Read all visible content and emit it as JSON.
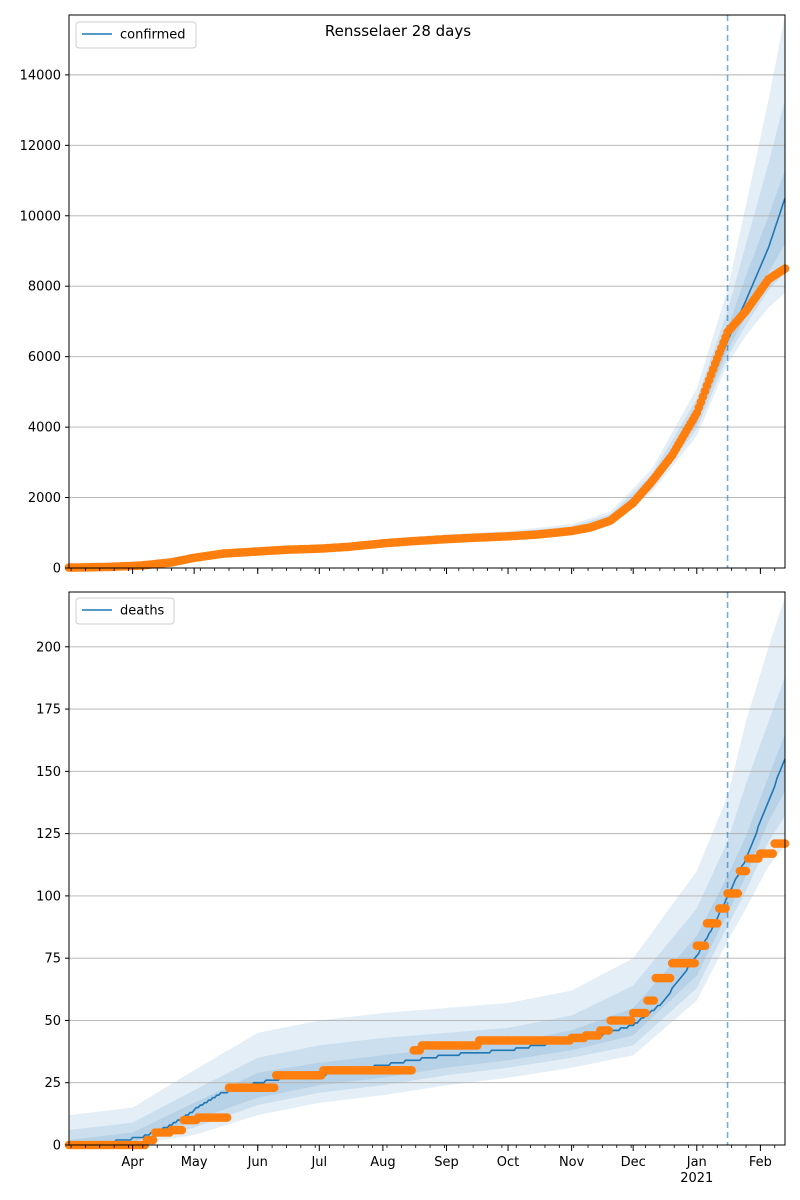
{
  "figure": {
    "title": "Rensselaer 28 days"
  },
  "colors": {
    "model": "#1f77b4",
    "observed": "#ff7f0e",
    "band": "#1f77b4",
    "grid": "#b0b0b0",
    "forecast_line": "#1f77b4"
  },
  "chart_data": [
    {
      "type": "line",
      "title": "Rensselaer 28 days",
      "xlabel": "",
      "ylabel": "",
      "xlim": [
        "2020-03-01",
        "2021-02-13"
      ],
      "ylim": [
        0,
        15700
      ],
      "yticks": [
        0,
        2000,
        4000,
        6000,
        8000,
        10000,
        12000,
        14000
      ],
      "ytick_labels": [
        "0",
        "2000",
        "4000",
        "6000",
        "8000",
        "10000",
        "12000",
        "14000"
      ],
      "grid": "horizontal",
      "legend": "top-left",
      "forecast_start": "2021-01-16",
      "series": [
        {
          "name": "confirmed",
          "kind": "model",
          "x": [
            "2020-03-01",
            "2020-03-20",
            "2020-04-05",
            "2020-04-20",
            "2020-05-01",
            "2020-05-15",
            "2020-06-01",
            "2020-06-15",
            "2020-07-01",
            "2020-07-15",
            "2020-08-01",
            "2020-08-15",
            "2020-09-01",
            "2020-09-15",
            "2020-10-01",
            "2020-10-15",
            "2020-11-01",
            "2020-11-10",
            "2020-11-20",
            "2020-12-01",
            "2020-12-10",
            "2020-12-20",
            "2021-01-01",
            "2021-01-10",
            "2021-01-16",
            "2021-01-25",
            "2021-02-05",
            "2021-02-13"
          ],
          "y": [
            20,
            40,
            80,
            170,
            300,
            420,
            470,
            520,
            560,
            610,
            700,
            780,
            840,
            880,
            930,
            980,
            1080,
            1170,
            1400,
            1900,
            2400,
            3150,
            4300,
            5600,
            6450,
            7600,
            9100,
            10500
          ]
        },
        {
          "kind": "observed",
          "x": [
            "2020-03-01",
            "2020-03-20",
            "2020-04-05",
            "2020-04-20",
            "2020-05-01",
            "2020-05-15",
            "2020-06-01",
            "2020-06-15",
            "2020-07-01",
            "2020-07-15",
            "2020-08-01",
            "2020-08-15",
            "2020-09-01",
            "2020-09-15",
            "2020-10-01",
            "2020-10-15",
            "2020-11-01",
            "2020-11-10",
            "2020-11-20",
            "2020-12-01",
            "2020-12-10",
            "2020-12-20",
            "2021-01-01",
            "2021-01-10",
            "2021-01-16",
            "2021-01-25",
            "2021-02-05",
            "2021-02-13"
          ],
          "y": [
            10,
            30,
            70,
            160,
            290,
            410,
            470,
            520,
            550,
            600,
            700,
            760,
            820,
            860,
            900,
            950,
            1050,
            1150,
            1350,
            1850,
            2450,
            3200,
            4400,
            5800,
            6700,
            7300,
            8200,
            8500
          ]
        }
      ],
      "bands": [
        {
          "x": [
            "2020-03-01",
            "2020-04-05",
            "2020-05-01",
            "2020-06-01",
            "2020-07-01",
            "2020-08-01",
            "2020-09-01",
            "2020-10-01",
            "2020-11-01",
            "2020-11-20",
            "2020-12-10",
            "2021-01-01",
            "2021-01-16",
            "2021-01-25",
            "2021-02-05",
            "2021-02-13"
          ],
          "lower": [
            0,
            40,
            230,
            380,
            470,
            600,
            720,
            820,
            960,
            1250,
            2150,
            3750,
            5800,
            6600,
            7400,
            7800
          ],
          "upper": [
            150,
            170,
            400,
            560,
            650,
            810,
            960,
            1050,
            1240,
            1600,
            2800,
            5100,
            7900,
            10300,
            13300,
            15700
          ]
        },
        {
          "x": [
            "2020-03-01",
            "2020-04-05",
            "2020-05-01",
            "2020-06-01",
            "2020-07-01",
            "2020-08-01",
            "2020-09-01",
            "2020-10-01",
            "2020-11-01",
            "2020-11-20",
            "2020-12-10",
            "2021-01-01",
            "2021-01-16",
            "2021-01-25",
            "2021-02-05",
            "2021-02-13"
          ],
          "lower": [
            5,
            55,
            255,
            410,
            500,
            630,
            760,
            860,
            1000,
            1300,
            2230,
            3950,
            6000,
            6900,
            7900,
            8400
          ],
          "upper": [
            100,
            135,
            360,
            530,
            620,
            780,
            920,
            1010,
            1180,
            1520,
            2650,
            4800,
            7300,
            9200,
            11500,
            13300
          ]
        },
        {
          "x": [
            "2020-03-01",
            "2020-04-05",
            "2020-05-01",
            "2020-06-01",
            "2020-07-01",
            "2020-08-01",
            "2020-09-01",
            "2020-10-01",
            "2020-11-01",
            "2020-11-20",
            "2020-12-10",
            "2021-01-01",
            "2021-01-16",
            "2021-01-25",
            "2021-02-05",
            "2021-02-13"
          ],
          "lower": [
            10,
            65,
            275,
            440,
            530,
            660,
            795,
            895,
            1040,
            1350,
            2300,
            4100,
            6200,
            7150,
            8400,
            9200
          ],
          "upper": [
            60,
            100,
            325,
            500,
            590,
            740,
            880,
            970,
            1120,
            1450,
            2500,
            4500,
            6800,
            8300,
            10000,
            11300
          ]
        }
      ]
    },
    {
      "type": "line",
      "title": "",
      "xlabel": "",
      "ylabel": "",
      "xlim": [
        "2020-03-01",
        "2021-02-13"
      ],
      "ylim": [
        0,
        222
      ],
      "yticks": [
        0,
        25,
        50,
        75,
        100,
        125,
        150,
        175,
        200
      ],
      "ytick_labels": [
        "0",
        "25",
        "50",
        "75",
        "100",
        "125",
        "150",
        "175",
        "200"
      ],
      "xticks": [
        "2020-04-01",
        "2020-05-01",
        "2020-06-01",
        "2020-07-01",
        "2020-08-01",
        "2020-09-01",
        "2020-10-01",
        "2020-11-01",
        "2020-12-01",
        "2021-01-01",
        "2021-02-01"
      ],
      "xtick_labels": [
        "Apr",
        "May",
        "Jun",
        "Jul",
        "Aug",
        "Sep",
        "Oct",
        "Nov",
        "Dec",
        "Jan",
        "Feb"
      ],
      "xtick_sublabel": {
        "at": "2021-01-01",
        "text": "2021"
      },
      "grid": "horizontal",
      "legend": "top-left",
      "forecast_start": "2021-01-16",
      "series": [
        {
          "name": "deaths",
          "kind": "model",
          "x": [
            "2020-03-01",
            "2020-03-20",
            "2020-04-05",
            "2020-04-20",
            "2020-05-01",
            "2020-05-15",
            "2020-06-01",
            "2020-06-15",
            "2020-07-01",
            "2020-07-15",
            "2020-08-01",
            "2020-08-15",
            "2020-09-01",
            "2020-09-15",
            "2020-10-01",
            "2020-10-15",
            "2020-11-01",
            "2020-11-15",
            "2020-12-01",
            "2020-12-15",
            "2021-01-01",
            "2021-01-10",
            "2021-01-16",
            "2021-01-25",
            "2021-02-05",
            "2021-02-13"
          ],
          "y": [
            0,
            1,
            3,
            8,
            14,
            21,
            25,
            27,
            28,
            30,
            32,
            34,
            36,
            37,
            38,
            40,
            42,
            44,
            48,
            57,
            76,
            89,
            100,
            115,
            138,
            155
          ]
        },
        {
          "kind": "observed",
          "x": [
            "2020-03-01",
            "2020-04-08",
            "2020-04-12",
            "2020-04-20",
            "2020-04-22",
            "2020-04-26",
            "2020-05-03",
            "2020-05-18",
            "2020-05-21",
            "2020-06-10",
            "2020-07-01",
            "2020-07-03",
            "2020-08-01",
            "2020-08-14",
            "2020-08-16",
            "2020-08-20",
            "2020-09-01",
            "2020-09-15",
            "2020-09-17",
            "2020-10-01",
            "2020-10-15",
            "2020-10-28",
            "2020-11-01",
            "2020-11-08",
            "2020-11-15",
            "2020-11-20",
            "2020-11-25",
            "2020-12-01",
            "2020-12-08",
            "2020-12-12",
            "2020-12-20",
            "2021-01-01",
            "2021-01-06",
            "2021-01-12",
            "2021-01-16",
            "2021-01-22",
            "2021-01-26",
            "2021-02-01",
            "2021-02-08",
            "2021-02-13"
          ],
          "y": [
            0,
            2,
            5,
            6,
            6,
            10,
            11,
            23,
            23,
            28,
            28,
            30,
            30,
            30,
            38,
            40,
            40,
            40,
            42,
            42,
            42,
            42,
            43,
            44,
            46,
            50,
            50,
            53,
            58,
            67,
            73,
            80,
            89,
            95,
            101,
            110,
            115,
            117,
            121,
            121
          ]
        }
      ],
      "bands": [
        {
          "x": [
            "2020-03-01",
            "2020-04-01",
            "2020-05-01",
            "2020-06-01",
            "2020-07-01",
            "2020-08-01",
            "2020-09-01",
            "2020-10-01",
            "2020-11-01",
            "2020-12-01",
            "2021-01-01",
            "2021-01-16",
            "2021-01-25",
            "2021-02-05",
            "2021-02-13"
          ],
          "lower": [
            0,
            0,
            4,
            12,
            17,
            20,
            24,
            27,
            31,
            36,
            58,
            82,
            95,
            112,
            120
          ],
          "upper": [
            12,
            15,
            30,
            45,
            50,
            53,
            55,
            57,
            62,
            75,
            110,
            140,
            170,
            200,
            220
          ]
        },
        {
          "x": [
            "2020-03-01",
            "2020-04-01",
            "2020-05-01",
            "2020-06-01",
            "2020-07-01",
            "2020-08-01",
            "2020-09-01",
            "2020-10-01",
            "2020-11-01",
            "2020-12-01",
            "2021-01-01",
            "2021-01-16",
            "2021-01-25",
            "2021-02-05",
            "2021-02-13"
          ],
          "lower": [
            0,
            1,
            7,
            16,
            21,
            24,
            28,
            31,
            35,
            40,
            63,
            88,
            102,
            122,
            132
          ],
          "upper": [
            6,
            9,
            22,
            35,
            40,
            43,
            45,
            47,
            52,
            64,
            95,
            122,
            145,
            170,
            188
          ]
        },
        {
          "x": [
            "2020-03-01",
            "2020-04-01",
            "2020-05-01",
            "2020-06-01",
            "2020-07-01",
            "2020-08-01",
            "2020-09-01",
            "2020-10-01",
            "2020-11-01",
            "2020-12-01",
            "2021-01-01",
            "2021-01-16",
            "2021-01-25",
            "2021-02-05",
            "2021-02-13"
          ],
          "lower": [
            0,
            1,
            10,
            19,
            24,
            27,
            31,
            34,
            38,
            44,
            68,
            93,
            108,
            130,
            142
          ],
          "upper": [
            2,
            5,
            17,
            29,
            33,
            36,
            39,
            41,
            46,
            55,
            84,
            108,
            124,
            148,
            165
          ]
        }
      ]
    }
  ]
}
